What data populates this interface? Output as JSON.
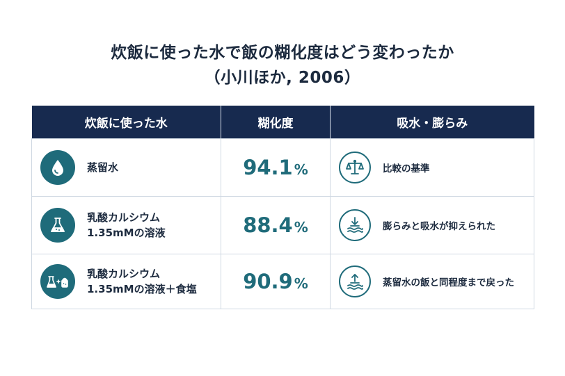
{
  "title": {
    "line1": "炊飯に使った水で飯の糊化度はどう変わったか",
    "line2": "（小川ほか, 2006）"
  },
  "table": {
    "headers": [
      "炊飯に使った水",
      "糊化度",
      "吸水・膨らみ"
    ],
    "rows": [
      {
        "condition_line1": "蒸留水",
        "condition_line2": "",
        "condition_icon": "water-drop-icon",
        "value": "94.1",
        "unit": "%",
        "result": "比較の基準",
        "result_icon": "balance-scale-icon"
      },
      {
        "condition_line1": "乳酸カルシウム",
        "condition_line2": "1.35mMの溶液",
        "condition_icon": "flask-icon",
        "value": "88.4",
        "unit": "%",
        "result": "膨らみと吸水が抑えられた",
        "result_icon": "arrow-down-water-icon"
      },
      {
        "condition_line1": "乳酸カルシウム",
        "condition_line2": "1.35mMの溶液＋食塩",
        "condition_icon": "flask-plus-salt-icon",
        "value": "90.9",
        "unit": "%",
        "result": "蒸留水の飯と同程度まで戻った",
        "result_icon": "arrow-up-water-icon"
      }
    ]
  },
  "colors": {
    "header_bg": "#172a4f",
    "accent": "#1f6b7a",
    "text": "#1d2b3f",
    "border": "#cfd8e2"
  }
}
